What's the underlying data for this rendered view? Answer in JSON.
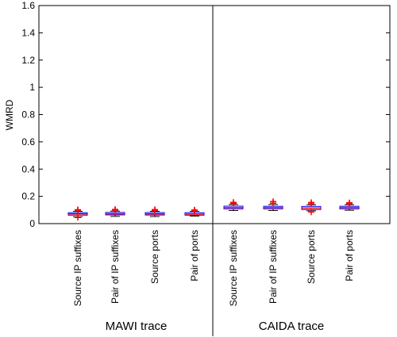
{
  "chart_data": {
    "type": "box",
    "ylabel": "WMRD",
    "ylim": [
      0,
      1.6
    ],
    "yticks": [
      "0",
      "0.2",
      "0.4",
      "0.6",
      "0.8",
      "1",
      "1.2",
      "1.4",
      "1.6"
    ],
    "groups": [
      {
        "name": "MAWI trace",
        "categories": [
          "Source IP suffixes",
          "Pair of IP suffixes",
          "Source ports",
          "Pair of ports"
        ],
        "boxes": [
          {
            "q1": 0.062,
            "median": 0.071,
            "q3": 0.08,
            "whisker_low": 0.05,
            "whisker_high": 0.09,
            "outliers": [
              0.098,
              0.102,
              0.045
            ]
          },
          {
            "q1": 0.064,
            "median": 0.072,
            "q3": 0.082,
            "whisker_low": 0.053,
            "whisker_high": 0.092,
            "outliers": [
              0.1,
              0.104
            ]
          },
          {
            "q1": 0.063,
            "median": 0.071,
            "q3": 0.081,
            "whisker_low": 0.052,
            "whisker_high": 0.09,
            "outliers": [
              0.097,
              0.103
            ]
          },
          {
            "q1": 0.062,
            "median": 0.07,
            "q3": 0.08,
            "whisker_low": 0.055,
            "whisker_high": 0.09,
            "outliers": [
              0.096,
              0.1
            ]
          }
        ]
      },
      {
        "name": "CAIDA trace",
        "categories": [
          "Source IP suffixes",
          "Pair of IP suffixes",
          "Source ports",
          "Pair of ports"
        ],
        "boxes": [
          {
            "q1": 0.108,
            "median": 0.118,
            "q3": 0.128,
            "whisker_low": 0.096,
            "whisker_high": 0.14,
            "outliers": [
              0.148,
              0.156
            ]
          },
          {
            "q1": 0.108,
            "median": 0.118,
            "q3": 0.127,
            "whisker_low": 0.096,
            "whisker_high": 0.14,
            "outliers": [
              0.15,
              0.162
            ]
          },
          {
            "q1": 0.103,
            "median": 0.114,
            "q3": 0.126,
            "whisker_low": 0.094,
            "whisker_high": 0.138,
            "outliers": [
              0.146,
              0.155,
              0.085
            ]
          },
          {
            "q1": 0.108,
            "median": 0.118,
            "q3": 0.127,
            "whisker_low": 0.098,
            "whisker_high": 0.139,
            "outliers": [
              0.146,
              0.153
            ]
          }
        ]
      }
    ],
    "colors": {
      "box": "#0000ff",
      "median": "#ff0000",
      "whisker": "#000000",
      "outlier": "#ff0000",
      "frame": "#000000"
    }
  }
}
